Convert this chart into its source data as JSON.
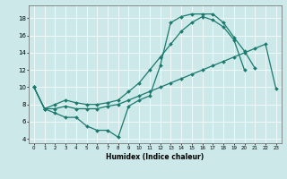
{
  "xlabel": "Humidex (Indice chaleur)",
  "bg_color": "#cce8e8",
  "line_color": "#1a7a6e",
  "xlim": [
    -0.5,
    23.5
  ],
  "ylim": [
    3.5,
    19.5
  ],
  "xticks": [
    0,
    1,
    2,
    3,
    4,
    5,
    6,
    7,
    8,
    9,
    10,
    11,
    12,
    13,
    14,
    15,
    16,
    17,
    18,
    19,
    20,
    21,
    22,
    23
  ],
  "yticks": [
    4,
    6,
    8,
    10,
    12,
    14,
    16,
    18
  ],
  "line1_x": [
    0,
    1,
    2,
    3,
    4,
    5,
    6,
    7,
    8,
    9,
    10,
    11,
    12,
    13,
    14,
    15,
    16,
    17,
    18,
    19,
    20,
    21
  ],
  "line1_y": [
    10,
    7.5,
    7.0,
    6.5,
    6.5,
    5.5,
    5.0,
    5.0,
    4.2,
    7.8,
    8.5,
    9.0,
    12.5,
    17.5,
    18.2,
    18.5,
    18.5,
    18.5,
    17.5,
    15.8,
    14.2,
    12.2
  ],
  "line2_x": [
    0,
    1,
    2,
    3,
    4,
    5,
    6,
    7,
    8,
    9,
    10,
    11,
    12,
    13,
    14,
    15,
    16,
    17,
    18,
    19,
    20
  ],
  "line2_y": [
    10,
    7.5,
    8.0,
    8.5,
    8.2,
    8.0,
    8.0,
    8.2,
    8.5,
    9.5,
    10.5,
    12.0,
    13.5,
    15.0,
    16.5,
    17.5,
    18.2,
    17.8,
    17.0,
    15.5,
    12.0
  ],
  "line3_x": [
    0,
    1,
    2,
    3,
    4,
    5,
    6,
    7,
    8,
    9,
    10,
    11,
    12,
    13,
    14,
    15,
    16,
    17,
    18,
    19,
    20,
    21,
    22,
    23
  ],
  "line3_y": [
    10,
    7.5,
    7.5,
    7.8,
    7.5,
    7.5,
    7.5,
    7.8,
    8.0,
    8.5,
    9.0,
    9.5,
    10.0,
    10.5,
    11.0,
    11.5,
    12.0,
    12.5,
    13.0,
    13.5,
    14.0,
    14.5,
    15.0,
    9.8
  ],
  "markersize": 2.0,
  "linewidth": 0.9,
  "xlabel_fontsize": 5.5,
  "xtick_fontsize": 4.0,
  "ytick_fontsize": 5.0
}
